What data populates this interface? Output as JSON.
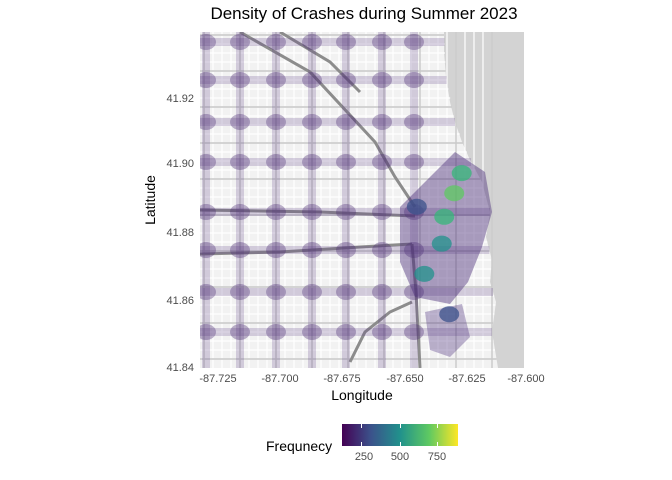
{
  "title": "Density of Crashes during Summer 2023",
  "chart_data": {
    "type": "heatmap",
    "title": "Density of Crashes during Summer 2023",
    "xlabel": "Longitude",
    "ylabel": "Latitude",
    "xlim": [
      -87.73,
      -87.6
    ],
    "ylim": [
      41.84,
      41.94
    ],
    "x_ticks": [
      "-87.725",
      "-87.700",
      "-87.675",
      "-87.650",
      "-87.625",
      "-87.600"
    ],
    "y_ticks": [
      "41.84",
      "41.86",
      "41.88",
      "41.90",
      "41.92"
    ],
    "basemap": "street map of Chicago with Lake Michigan to the east",
    "colorscale": "viridis",
    "legend": {
      "title": "Frequnecy",
      "ticks": [
        "250",
        "500",
        "750"
      ],
      "range": [
        100,
        900
      ],
      "position": "bottom"
    },
    "hotspots": [
      {
        "x": -87.628,
        "y": 41.892,
        "level": 900
      },
      {
        "x": -87.632,
        "y": 41.885,
        "level": 650
      },
      {
        "x": -87.625,
        "y": 41.898,
        "level": 600
      },
      {
        "x": -87.64,
        "y": 41.868,
        "level": 550
      },
      {
        "x": -87.633,
        "y": 41.877,
        "level": 500
      },
      {
        "x": -87.63,
        "y": 41.856,
        "level": 350
      },
      {
        "x": -87.643,
        "y": 41.888,
        "level": 300
      }
    ]
  },
  "colors": {
    "density_low": "#440154",
    "density_mid": "#21918c",
    "density_high": "#5ec962",
    "lake": "#d4d4d4",
    "land": "#f2f2f2"
  }
}
